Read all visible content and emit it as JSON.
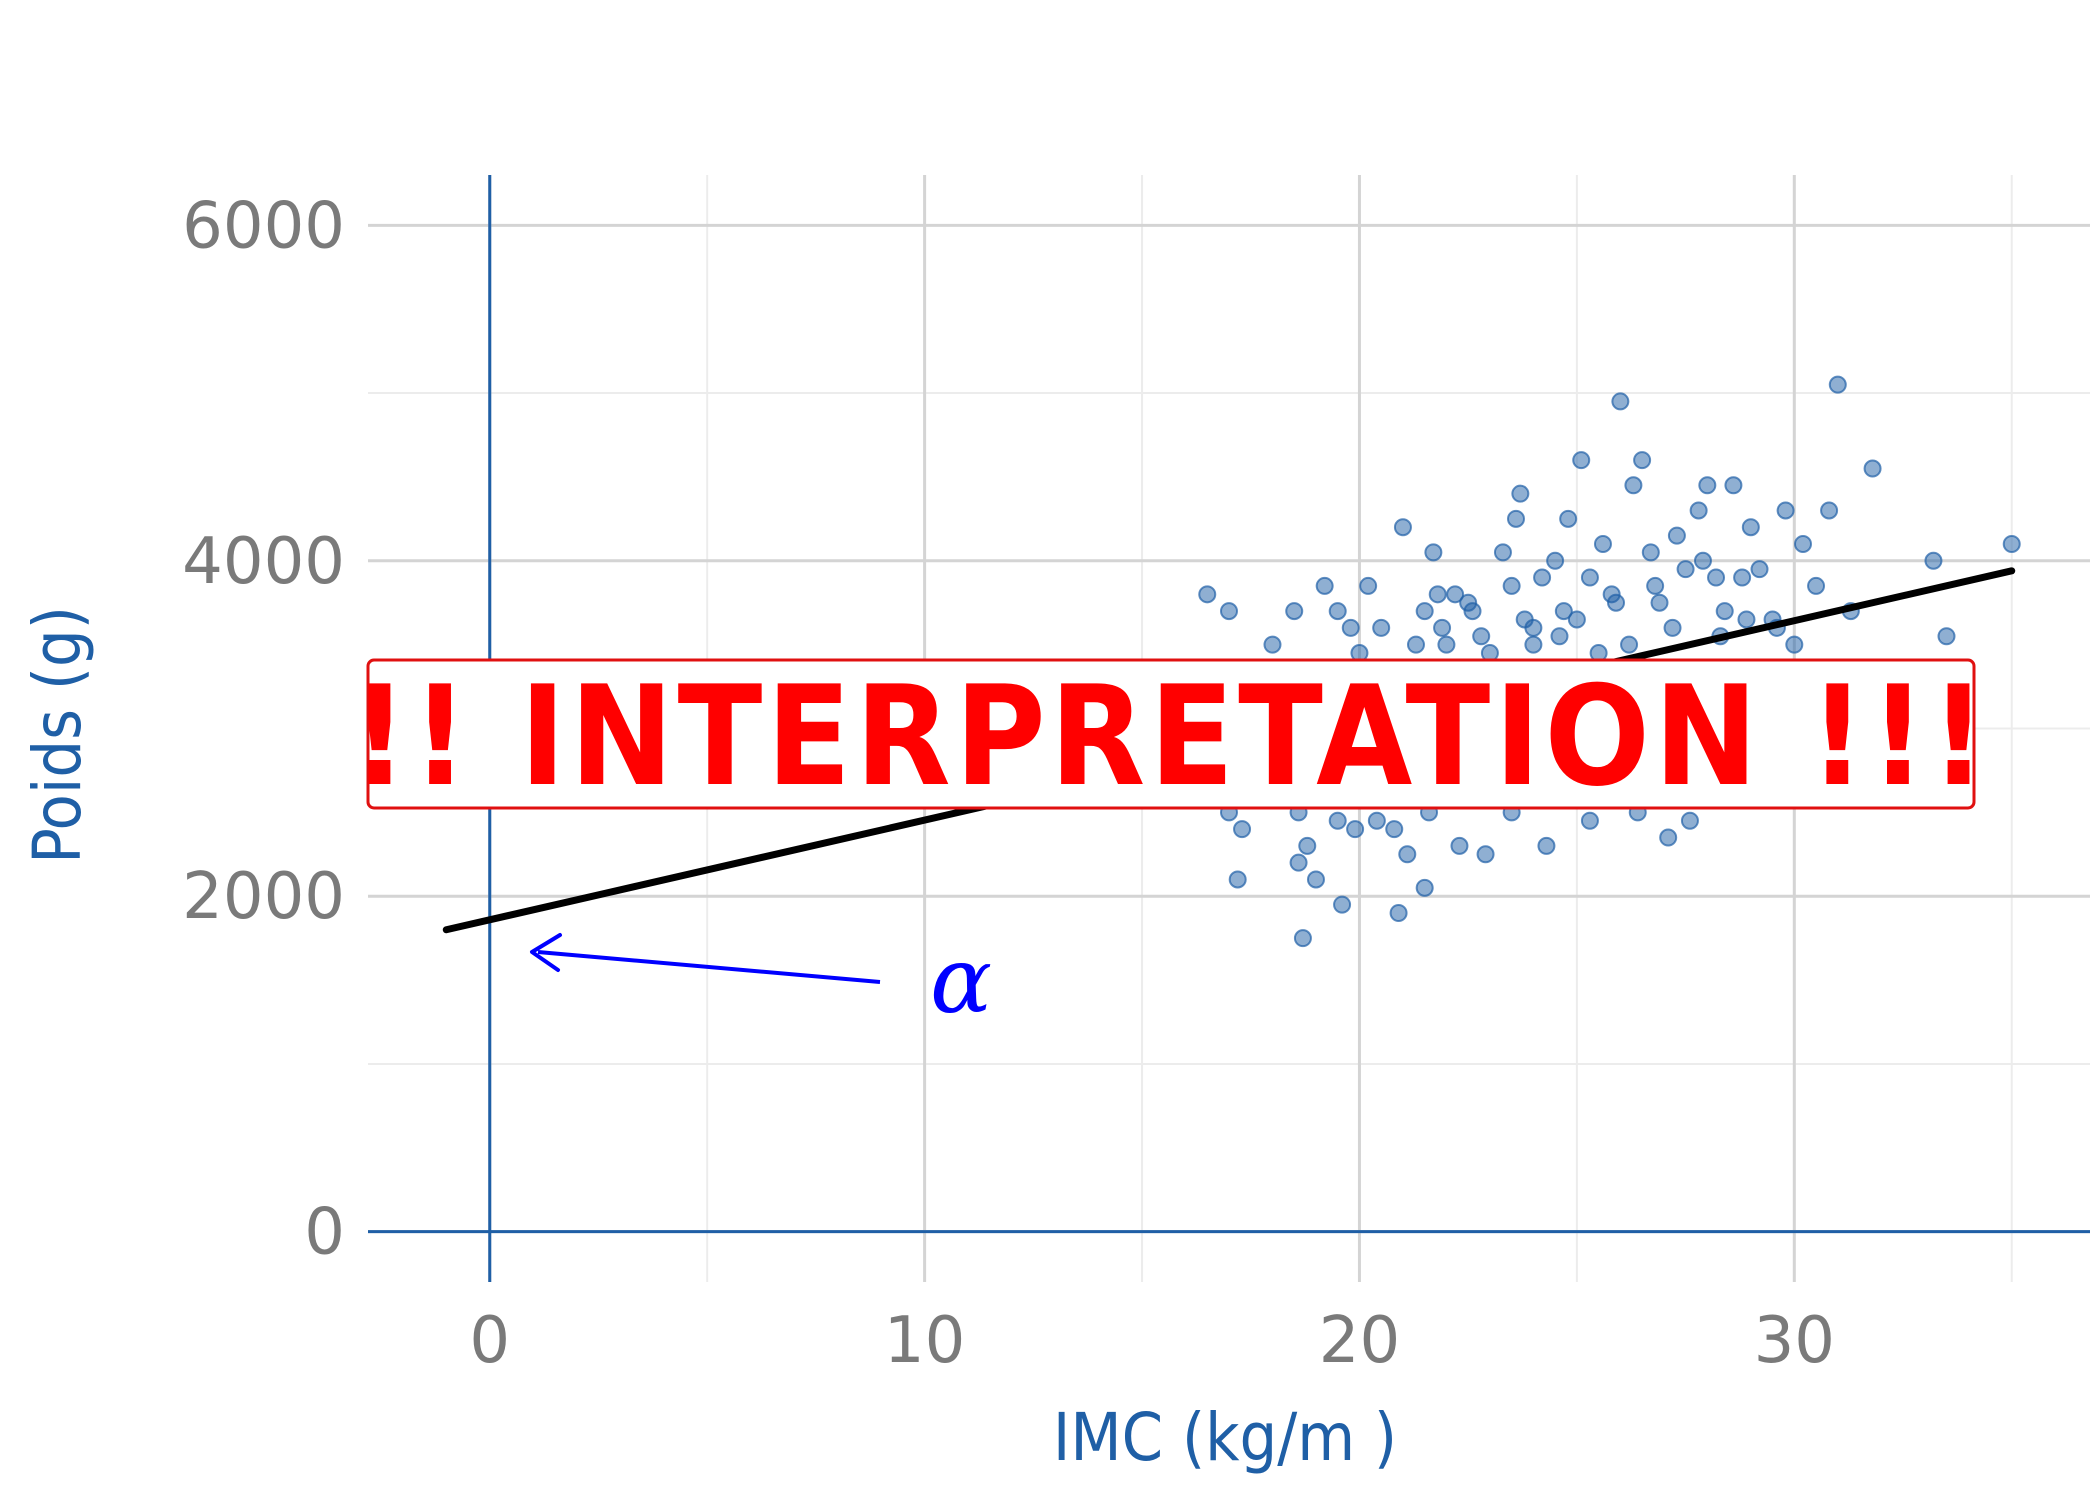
{
  "chart_data": {
    "type": "scatter",
    "title": "",
    "xlabel": "IMC (kg/m )",
    "ylabel": "Poids (g)",
    "xlim": [
      -2.8,
      36.8
    ],
    "ylim": [
      -300,
      6300
    ],
    "x_ticks": [
      0,
      10,
      20,
      30
    ],
    "y_ticks": [
      0,
      2000,
      4000,
      6000
    ],
    "x_tick_labels": [
      "0",
      "10",
      "20",
      "30"
    ],
    "y_tick_labels": [
      "0",
      "2000",
      "4000",
      "6000"
    ],
    "grid": true,
    "legend": "none",
    "points_color": "#1f5fa6",
    "points": [
      [
        16.5,
        3800
      ],
      [
        17.0,
        3700
      ],
      [
        17.3,
        2400
      ],
      [
        17.0,
        2500
      ],
      [
        17.2,
        2100
      ],
      [
        18.0,
        3500
      ],
      [
        18.5,
        3700
      ],
      [
        18.6,
        2500
      ],
      [
        18.8,
        2300
      ],
      [
        18.6,
        2200
      ],
      [
        18.7,
        1750
      ],
      [
        19.0,
        2100
      ],
      [
        19.2,
        3850
      ],
      [
        19.5,
        3700
      ],
      [
        19.8,
        3600
      ],
      [
        19.5,
        2450
      ],
      [
        19.9,
        2400
      ],
      [
        19.6,
        1950
      ],
      [
        20.2,
        3850
      ],
      [
        20.5,
        3600
      ],
      [
        20.4,
        2450
      ],
      [
        20.8,
        2400
      ],
      [
        20.9,
        1900
      ],
      [
        21.0,
        4200
      ],
      [
        21.1,
        2250
      ],
      [
        21.5,
        3700
      ],
      [
        21.5,
        2050
      ],
      [
        21.7,
        4050
      ],
      [
        21.6,
        2500
      ],
      [
        21.9,
        3600
      ],
      [
        22.2,
        3800
      ],
      [
        22.3,
        2300
      ],
      [
        22.6,
        3700
      ],
      [
        22.8,
        3550
      ],
      [
        22.9,
        2250
      ],
      [
        23.3,
        4050
      ],
      [
        23.5,
        3850
      ],
      [
        23.5,
        2500
      ],
      [
        23.7,
        4400
      ],
      [
        23.6,
        4250
      ],
      [
        24.0,
        3600
      ],
      [
        24.3,
        2300
      ],
      [
        24.5,
        4000
      ],
      [
        24.8,
        4250
      ],
      [
        24.7,
        3700
      ],
      [
        25.1,
        4600
      ],
      [
        25.3,
        3900
      ],
      [
        25.3,
        2450
      ],
      [
        25.6,
        4100
      ],
      [
        25.8,
        3800
      ],
      [
        26.0,
        4950
      ],
      [
        26.3,
        4450
      ],
      [
        26.5,
        4600
      ],
      [
        26.4,
        2500
      ],
      [
        26.7,
        4050
      ],
      [
        26.9,
        3750
      ],
      [
        27.1,
        2350
      ],
      [
        27.3,
        4150
      ],
      [
        27.5,
        3950
      ],
      [
        27.8,
        4300
      ],
      [
        27.6,
        2450
      ],
      [
        28.0,
        4450
      ],
      [
        28.2,
        3900
      ],
      [
        28.4,
        3700
      ],
      [
        28.6,
        4450
      ],
      [
        28.8,
        3900
      ],
      [
        29.0,
        4200
      ],
      [
        29.2,
        3950
      ],
      [
        29.5,
        3650
      ],
      [
        29.8,
        4300
      ],
      [
        30.2,
        4100
      ],
      [
        30.5,
        3850
      ],
      [
        30.8,
        4300
      ],
      [
        31.0,
        5050
      ],
      [
        31.3,
        3700
      ],
      [
        31.8,
        4550
      ],
      [
        33.2,
        4000
      ],
      [
        33.5,
        3550
      ],
      [
        35.0,
        4100
      ],
      [
        22.0,
        3500
      ],
      [
        23.0,
        3450
      ],
      [
        24.0,
        3500
      ],
      [
        25.5,
        3450
      ],
      [
        26.2,
        3500
      ],
      [
        27.2,
        3600
      ],
      [
        28.3,
        3550
      ],
      [
        29.6,
        3600
      ],
      [
        21.3,
        3500
      ],
      [
        22.5,
        3750
      ],
      [
        24.2,
        3900
      ],
      [
        25.0,
        3650
      ],
      [
        26.8,
        3850
      ],
      [
        27.9,
        4000
      ],
      [
        20.0,
        3450
      ],
      [
        23.8,
        3650
      ],
      [
        25.9,
        3750
      ],
      [
        28.9,
        3650
      ],
      [
        30.0,
        3500
      ],
      [
        21.8,
        3800
      ],
      [
        24.6,
        3550
      ]
    ],
    "fit_line": {
      "x": [
        -1,
        35
      ],
      "y": [
        1800,
        3940
      ]
    },
    "annotations": [
      {
        "text": "!! INTERPRETATION !!!",
        "color": "#ff0000"
      },
      {
        "text": "α",
        "color": "#0000ff",
        "points_to": [
          0.8,
          1700
        ]
      }
    ]
  }
}
